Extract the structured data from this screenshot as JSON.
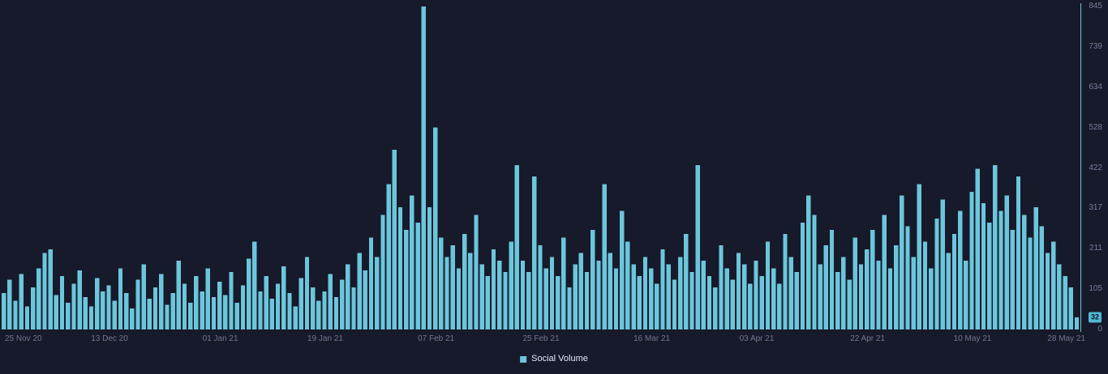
{
  "colors": {
    "background": "#161a2b",
    "bar": "#6cc6db",
    "axis_line": "#6cc6db",
    "axis_text_y": "#767d9a",
    "axis_text_x": "#6f7690",
    "badge_bg": "#52b9d5",
    "badge_text": "#0e1220",
    "legend_text": "#e6e9f2"
  },
  "legend": {
    "label": "Social Volume"
  },
  "badge": {
    "value": "32"
  },
  "chart_data": {
    "type": "bar",
    "title": "",
    "series_name": "Social Volume",
    "ylabel": "",
    "xlabel": "",
    "y_max": 845,
    "y_ticks": [
      845,
      739,
      634,
      528,
      422,
      317,
      211,
      105,
      0
    ],
    "current_value": 32,
    "grid": false,
    "legend_position": "bottom",
    "x_ticks": [
      {
        "label": "25 Nov 20",
        "index": 0
      },
      {
        "label": "13 Dec 20",
        "index": 18
      },
      {
        "label": "01 Jan 21",
        "index": 37
      },
      {
        "label": "19 Jan 21",
        "index": 55
      },
      {
        "label": "07 Feb 21",
        "index": 74
      },
      {
        "label": "25 Feb 21",
        "index": 92
      },
      {
        "label": "16 Mar 21",
        "index": 111
      },
      {
        "label": "03 Apr 21",
        "index": 129
      },
      {
        "label": "22 Apr 21",
        "index": 148
      },
      {
        "label": "10 May 21",
        "index": 166
      },
      {
        "label": "28 May 21",
        "index": 184
      }
    ],
    "x_range": [
      "25 Nov 20",
      "28 May 21"
    ],
    "values": [
      95,
      130,
      75,
      145,
      60,
      110,
      160,
      200,
      210,
      90,
      140,
      70,
      120,
      155,
      85,
      60,
      135,
      100,
      115,
      75,
      160,
      95,
      55,
      130,
      170,
      80,
      110,
      145,
      65,
      95,
      180,
      120,
      70,
      140,
      100,
      160,
      85,
      125,
      90,
      150,
      70,
      115,
      185,
      230,
      100,
      140,
      80,
      120,
      165,
      95,
      60,
      135,
      190,
      110,
      75,
      100,
      145,
      85,
      130,
      170,
      110,
      200,
      155,
      240,
      190,
      300,
      380,
      470,
      320,
      260,
      350,
      280,
      845,
      320,
      528,
      240,
      190,
      220,
      160,
      250,
      200,
      300,
      170,
      140,
      210,
      180,
      150,
      230,
      430,
      180,
      150,
      400,
      220,
      160,
      190,
      140,
      240,
      110,
      170,
      200,
      150,
      260,
      180,
      380,
      200,
      160,
      310,
      230,
      170,
      140,
      190,
      160,
      120,
      210,
      170,
      130,
      190,
      250,
      150,
      430,
      180,
      140,
      110,
      220,
      160,
      130,
      200,
      170,
      120,
      180,
      140,
      230,
      160,
      120,
      250,
      190,
      150,
      280,
      350,
      300,
      170,
      220,
      260,
      150,
      190,
      130,
      240,
      170,
      210,
      260,
      180,
      300,
      160,
      220,
      350,
      270,
      190,
      380,
      230,
      160,
      290,
      340,
      200,
      250,
      310,
      180,
      360,
      420,
      330,
      280,
      430,
      310,
      350,
      260,
      400,
      300,
      240,
      320,
      270,
      200,
      230,
      170,
      140,
      110,
      32
    ]
  }
}
